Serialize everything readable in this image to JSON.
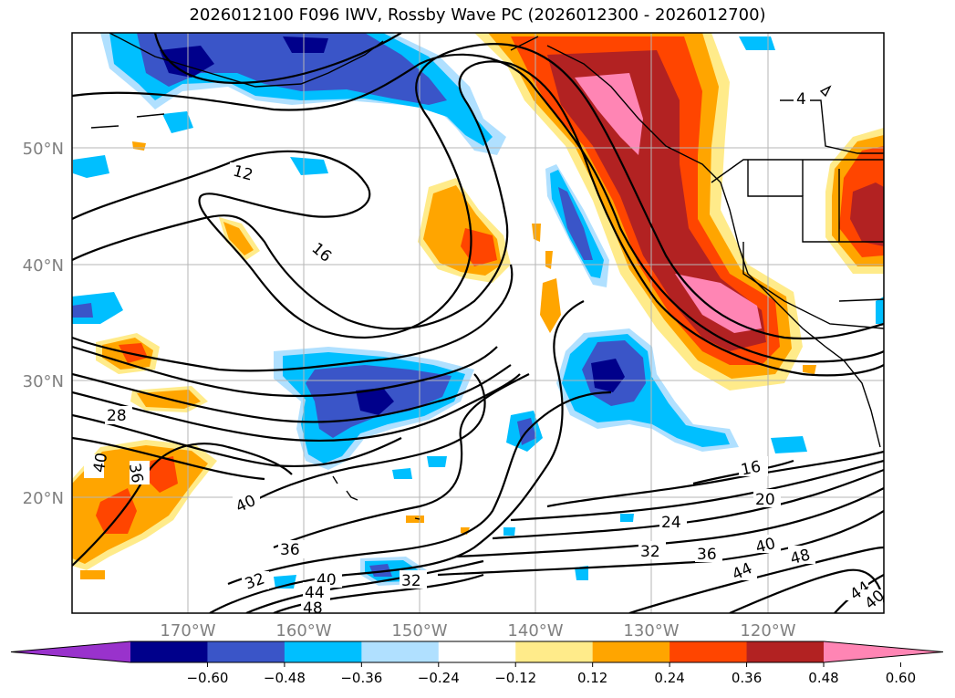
{
  "title": "2026012100 F096 IWV, Rossby Wave PC (2026012300 - 2026012700)",
  "lat_labels": [
    "50°N",
    "40°N",
    "30°N",
    "20°N"
  ],
  "lon_labels": [
    "170°W",
    "160°W",
    "150°W",
    "140°W",
    "130°W",
    "120°W"
  ],
  "colorbar": {
    "colors": [
      "#9932cc",
      "#00008b",
      "#3a55c8",
      "#00bfff",
      "#b0e0ff",
      "#ffffff",
      "#ffeb8a",
      "#ffa500",
      "#ff4500",
      "#b22222",
      "#ff85b4"
    ],
    "tick_labels": [
      "−0.60",
      "−0.48",
      "−0.36",
      "−0.24",
      "−0.12",
      "0.12",
      "0.24",
      "0.36",
      "0.48",
      "0.60"
    ]
  },
  "contour_labels": [
    "12",
    "16",
    "4",
    "28",
    "40",
    "36",
    "40",
    "36",
    "32",
    "40",
    "44",
    "48",
    "32",
    "16",
    "20",
    "24",
    "32",
    "36",
    "40",
    "44",
    "48",
    "44",
    "40"
  ]
}
